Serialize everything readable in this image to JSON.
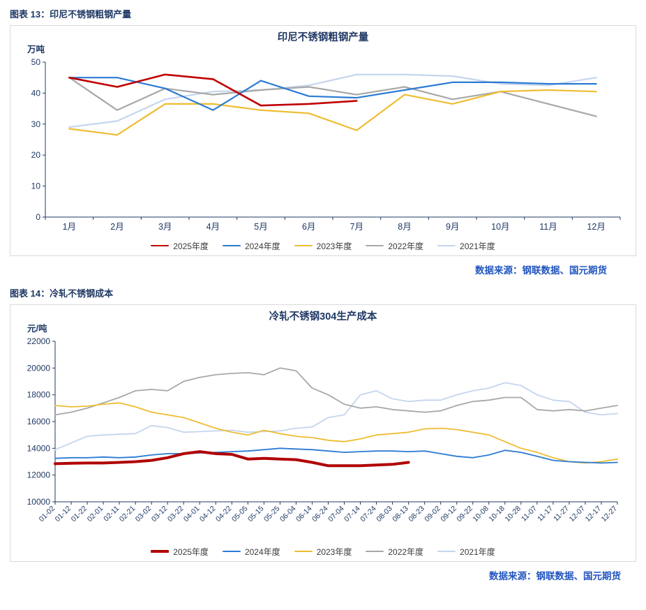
{
  "figures": [
    {
      "label": "图表 13：印尼不锈钢粗钢产量",
      "source": "数据来源：钢联数据、国元期货"
    },
    {
      "label": "图表 14：冷轧不锈钢成本",
      "source": "数据来源：钢联数据、国元期货"
    }
  ],
  "chart_data": [
    {
      "type": "line",
      "title": "印尼不锈钢粗钢产量",
      "unit_label": "万吨",
      "categories": [
        "1月",
        "2月",
        "3月",
        "4月",
        "5月",
        "6月",
        "7月",
        "8月",
        "9月",
        "10月",
        "11月",
        "12月"
      ],
      "ylim": [
        0,
        50
      ],
      "ytick_step": 10,
      "grid": false,
      "legend_position": "bottom",
      "series": [
        {
          "name": "2025年度",
          "color": "#c00000",
          "width": 2.6,
          "values": [
            45,
            42,
            46,
            44.5,
            36,
            36.5,
            37.5,
            null,
            null,
            null,
            null,
            null
          ]
        },
        {
          "name": "2024年度",
          "color": "#2b7bd4",
          "width": 2.2,
          "values": [
            45,
            45,
            41.5,
            34.5,
            44,
            39,
            38.5,
            41,
            43.5,
            43.5,
            43,
            43
          ]
        },
        {
          "name": "2023年度",
          "color": "#edbd31",
          "width": 2.2,
          "values": [
            28.5,
            26.5,
            36.5,
            36.5,
            34.5,
            33.5,
            28,
            39.5,
            36.5,
            40.5,
            41,
            40.5
          ]
        },
        {
          "name": "2022年度",
          "color": "#a8a8a8",
          "width": 2.2,
          "values": [
            45,
            34.5,
            41.5,
            39.5,
            41,
            42,
            39.5,
            42,
            38,
            40.5,
            36.5,
            32.5
          ]
        },
        {
          "name": "2021年度",
          "color": "#c5d5ee",
          "width": 2.2,
          "values": [
            29,
            31,
            38,
            40.5,
            41,
            42.5,
            46,
            46,
            45.5,
            43,
            42.5,
            45
          ]
        }
      ]
    },
    {
      "type": "line",
      "title": "冷轧不锈钢304生产成本",
      "unit_label": "元/吨",
      "categories": [
        "01-02",
        "01-12",
        "01-22",
        "02-01",
        "02-11",
        "02-21",
        "03-02",
        "03-12",
        "03-22",
        "04-01",
        "04-12",
        "04-22",
        "05-05",
        "05-15",
        "05-25",
        "06-04",
        "06-14",
        "06-24",
        "07-04",
        "07-14",
        "07-24",
        "08-03",
        "08-13",
        "08-23",
        "09-02",
        "09-12",
        "09-22",
        "10-08",
        "10-18",
        "10-28",
        "11-07",
        "11-17",
        "11-27",
        "12-07",
        "12-17",
        "12-27"
      ],
      "ylim": [
        10000,
        22000
      ],
      "ytick_step": 2000,
      "grid": false,
      "legend_position": "bottom",
      "series": [
        {
          "name": "2025年度",
          "color": "#b00000",
          "width": 4,
          "values": [
            12850,
            12880,
            12900,
            12900,
            12950,
            13000,
            13100,
            13300,
            13600,
            13750,
            13600,
            13550,
            13200,
            13250,
            13200,
            13150,
            12950,
            12700,
            12700,
            12700,
            12750,
            12800,
            12950,
            null,
            null,
            null,
            null,
            null,
            null,
            null,
            null,
            null,
            null,
            null,
            null,
            null
          ]
        },
        {
          "name": "2024年度",
          "color": "#2b7bd4",
          "width": 1.8,
          "values": [
            13250,
            13300,
            13300,
            13350,
            13300,
            13350,
            13500,
            13600,
            13600,
            13650,
            13700,
            13750,
            13800,
            13900,
            14000,
            13950,
            13900,
            13800,
            13700,
            13750,
            13800,
            13800,
            13750,
            13800,
            13600,
            13400,
            13300,
            13500,
            13850,
            13700,
            13400,
            13100,
            13000,
            12950,
            12900,
            12950
          ]
        },
        {
          "name": "2023年度",
          "color": "#edbd31",
          "width": 1.8,
          "values": [
            17200,
            17100,
            17150,
            17300,
            17400,
            17100,
            16700,
            16500,
            16300,
            15900,
            15500,
            15200,
            15000,
            15350,
            15100,
            14900,
            14800,
            14600,
            14500,
            14700,
            15000,
            15100,
            15200,
            15450,
            15500,
            15400,
            15200,
            15000,
            14500,
            14000,
            13700,
            13300,
            13000,
            12900,
            13000,
            13200
          ]
        },
        {
          "name": "2022年度",
          "color": "#a8a8a8",
          "width": 1.8,
          "values": [
            16500,
            16700,
            17000,
            17400,
            17800,
            18300,
            18400,
            18300,
            19000,
            19300,
            19500,
            19600,
            19650,
            19500,
            20000,
            19800,
            18500,
            18000,
            17300,
            17000,
            17100,
            16900,
            16800,
            16700,
            16800,
            17200,
            17500,
            17600,
            17800,
            17800,
            16900,
            16800,
            16900,
            16800,
            17000,
            17200
          ]
        },
        {
          "name": "2021年度",
          "color": "#c5d5ee",
          "width": 1.8,
          "values": [
            13900,
            14400,
            14900,
            15000,
            15050,
            15100,
            15700,
            15550,
            15200,
            15250,
            15300,
            15350,
            15200,
            15250,
            15300,
            15500,
            15600,
            16300,
            16500,
            18000,
            18300,
            17700,
            17500,
            17600,
            17600,
            18000,
            18300,
            18500,
            18900,
            18700,
            18000,
            17600,
            17500,
            16700,
            16500,
            16600
          ]
        }
      ]
    }
  ]
}
